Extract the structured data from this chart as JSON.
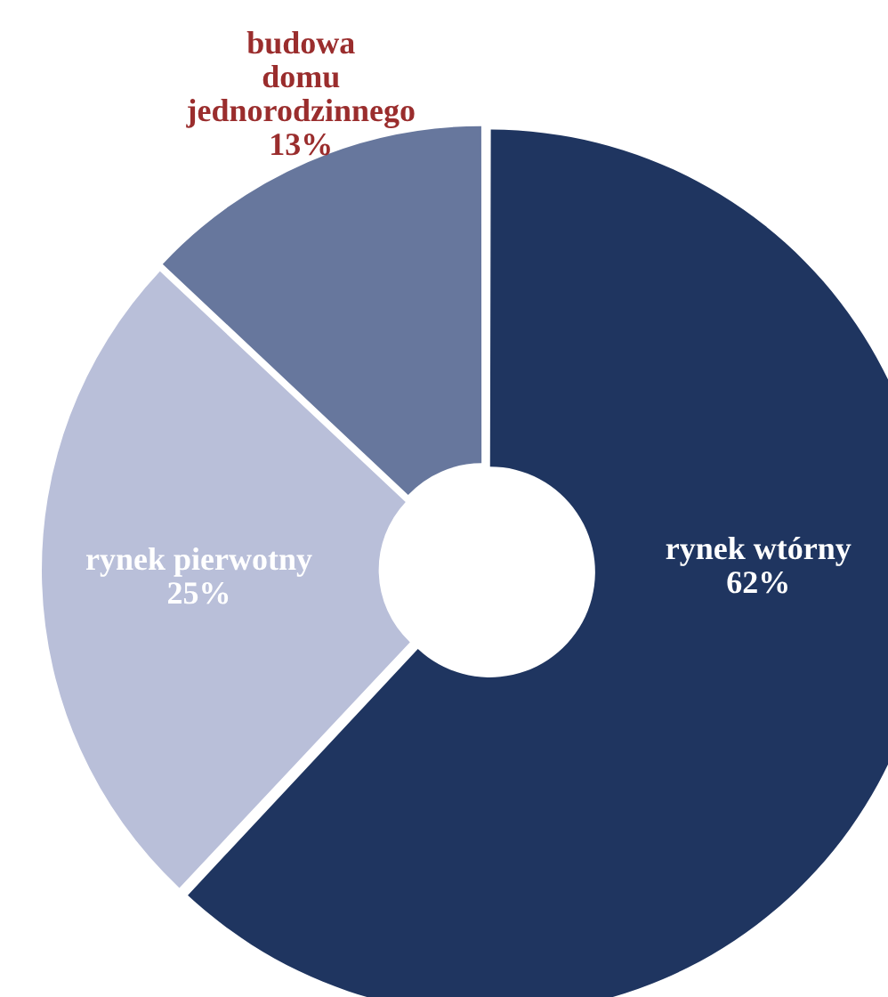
{
  "chart_data": {
    "type": "donut",
    "categories": [
      "rynek wtórny",
      "rynek pierwotny",
      "budowa domu jednorodzinnego"
    ],
    "values": [
      62,
      25,
      13
    ],
    "colors": [
      "#1f3560",
      "#b9bfd9",
      "#67779d"
    ],
    "value_labels": [
      "62%",
      "25%",
      "13%"
    ],
    "legend": false
  }
}
